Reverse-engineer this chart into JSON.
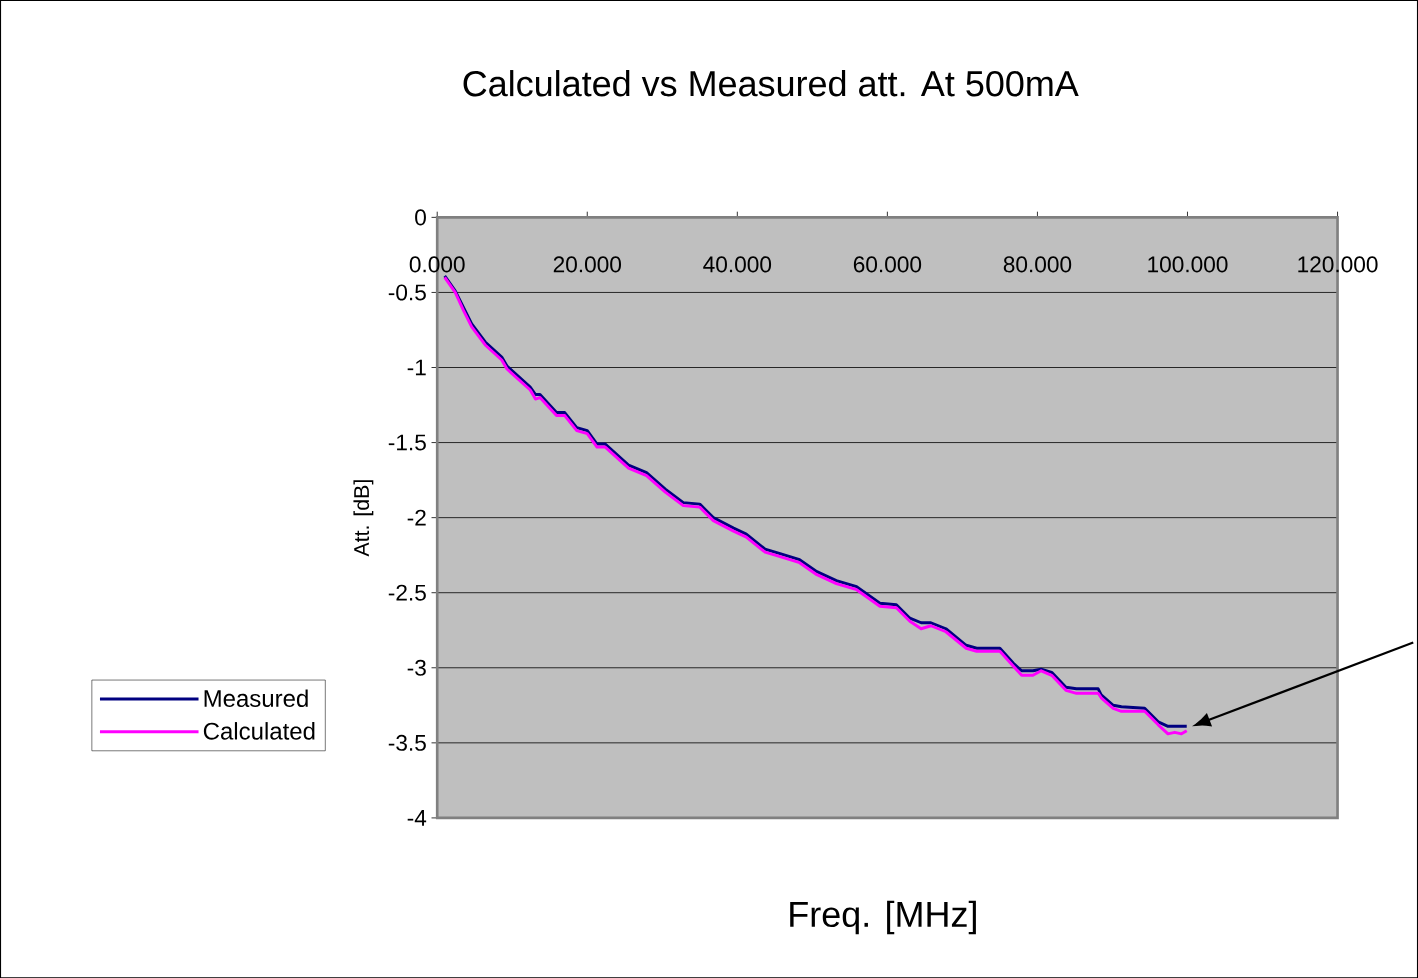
{
  "chart_data": {
    "type": "line",
    "title": "Calculated vs Measured att. At 500mA",
    "xlabel": "Freq. [MHz]",
    "ylabel": "Att. [dB]",
    "x": [
      1.0,
      2.4,
      3.5,
      4.6,
      6.4,
      8.6,
      9.3,
      12.4,
      13.1,
      13.7,
      15.9,
      17.0,
      18.6,
      20.0,
      21.3,
      22.4,
      25.5,
      27.9,
      30.4,
      32.8,
      35.0,
      36.8,
      39.5,
      41.2,
      43.7,
      45.7,
      48.3,
      50.6,
      53.2,
      55.9,
      59.0,
      61.2,
      63.0,
      64.5,
      65.8,
      67.8,
      70.5,
      71.9,
      75.0,
      76.8,
      77.9,
      79.4,
      80.5,
      81.9,
      83.8,
      85.2,
      88.1,
      88.5,
      90.1,
      91.2,
      94.3,
      96.1,
      97.4,
      98.3,
      99.2,
      99.9
    ],
    "series": [
      {
        "name": "Measured",
        "color": "#000080",
        "values": [
          -0.39,
          -0.49,
          -0.6,
          -0.71,
          -0.83,
          -0.93,
          -0.99,
          -1.13,
          -1.18,
          -1.18,
          -1.3,
          -1.3,
          -1.4,
          -1.42,
          -1.51,
          -1.51,
          -1.65,
          -1.7,
          -1.81,
          -1.9,
          -1.91,
          -2.0,
          -2.07,
          -2.11,
          -2.21,
          -2.24,
          -2.28,
          -2.36,
          -2.42,
          -2.46,
          -2.57,
          -2.58,
          -2.67,
          -2.7,
          -2.7,
          -2.74,
          -2.85,
          -2.87,
          -2.87,
          -2.97,
          -3.02,
          -3.02,
          -3.01,
          -3.03,
          -3.13,
          -3.14,
          -3.14,
          -3.18,
          -3.25,
          -3.26,
          -3.27,
          -3.36,
          -3.39,
          -3.39,
          -3.39,
          -3.39
        ]
      },
      {
        "name": "Calculated",
        "color": "#ff00ff",
        "values": [
          -0.4,
          -0.5,
          -0.62,
          -0.73,
          -0.85,
          -0.95,
          -1.01,
          -1.15,
          -1.21,
          -1.2,
          -1.32,
          -1.32,
          -1.42,
          -1.44,
          -1.53,
          -1.53,
          -1.67,
          -1.72,
          -1.83,
          -1.92,
          -1.93,
          -2.02,
          -2.09,
          -2.13,
          -2.23,
          -2.26,
          -2.3,
          -2.38,
          -2.44,
          -2.48,
          -2.59,
          -2.6,
          -2.69,
          -2.74,
          -2.72,
          -2.76,
          -2.87,
          -2.89,
          -2.89,
          -2.99,
          -3.05,
          -3.05,
          -3.02,
          -3.05,
          -3.15,
          -3.17,
          -3.17,
          -3.2,
          -3.27,
          -3.29,
          -3.29,
          -3.38,
          -3.44,
          -3.43,
          -3.44,
          -3.42
        ]
      }
    ],
    "xlim": [
      0,
      120
    ],
    "xticks": [
      {
        "value": 0,
        "label": "0.000"
      },
      {
        "value": 20,
        "label": "20.000"
      },
      {
        "value": 40,
        "label": "40.000"
      },
      {
        "value": 60,
        "label": "60.000"
      },
      {
        "value": 80,
        "label": "80.000"
      },
      {
        "value": 100,
        "label": "100.000"
      },
      {
        "value": 120,
        "label": "120.000"
      }
    ],
    "ylim": [
      -4,
      0
    ],
    "yticks": [
      0,
      -0.5,
      -1,
      -1.5,
      -2,
      -2.5,
      -3,
      -3.5,
      -4
    ],
    "grid": "y",
    "legend": "left"
  }
}
